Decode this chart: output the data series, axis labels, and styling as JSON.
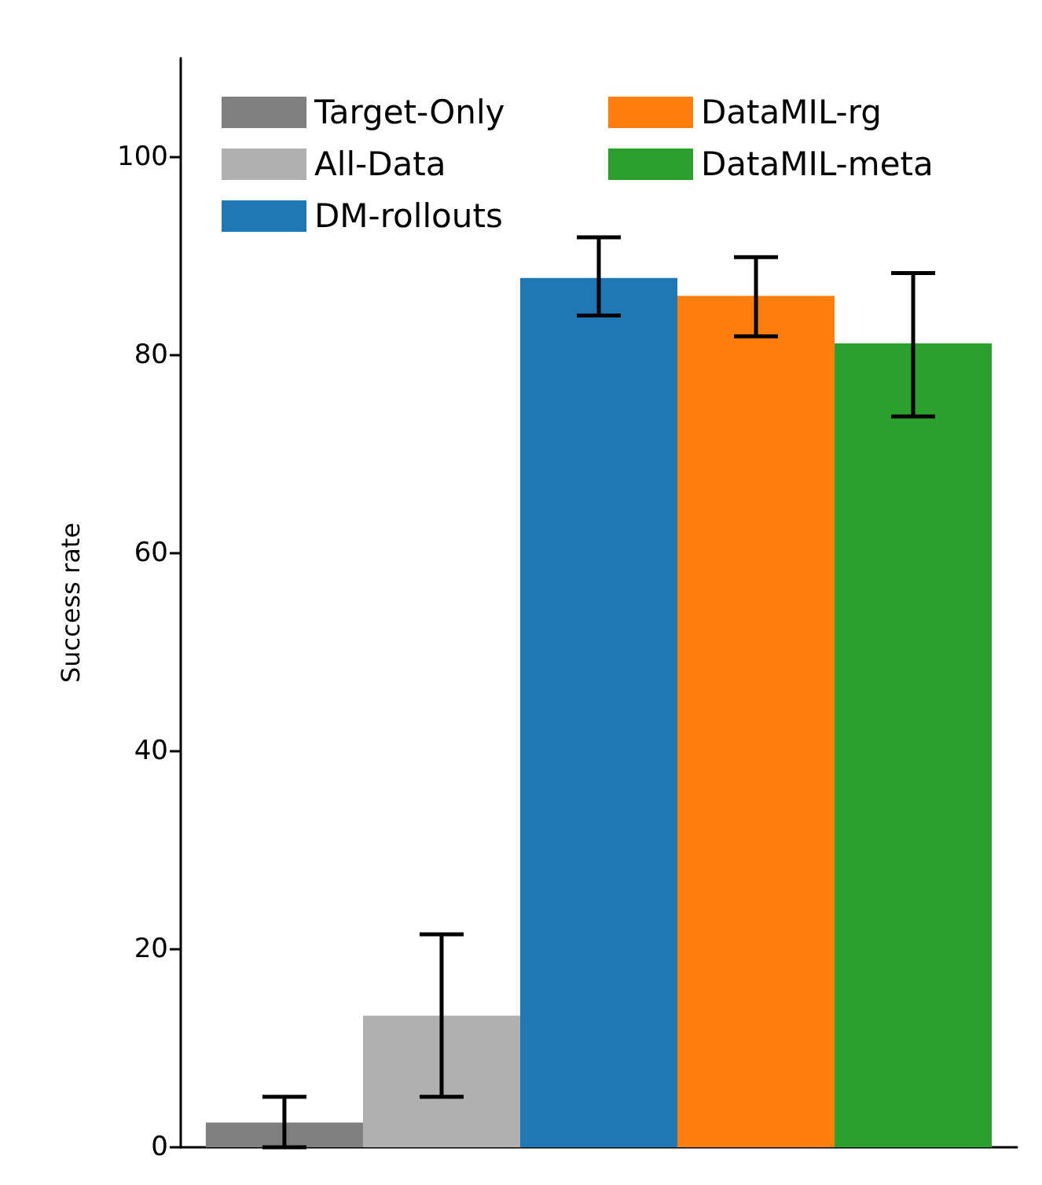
{
  "chart_data": {
    "type": "bar",
    "ylabel": "Success rate",
    "categories": [
      null
    ],
    "series": [
      {
        "name": "Target-Only",
        "color": "#808080",
        "values": [
          2.5
        ],
        "errors": [
          [
            0,
            5.1
          ]
        ]
      },
      {
        "name": "All-Data",
        "color": "#b0b0b0",
        "values": [
          13.3
        ],
        "errors": [
          [
            5.1,
            21.5
          ]
        ]
      },
      {
        "name": "DM-rollouts",
        "color": "#1f77b4",
        "values": [
          87.8
        ],
        "errors": [
          [
            84.0,
            91.9
          ]
        ]
      },
      {
        "name": "DataMIL-rg",
        "color": "#ff7f0e",
        "values": [
          86.0
        ],
        "errors": [
          [
            81.9,
            89.9
          ]
        ]
      },
      {
        "name": "DataMIL-meta",
        "color": "#2ca02c",
        "values": [
          81.2
        ],
        "errors": [
          [
            73.8,
            88.3
          ]
        ]
      }
    ],
    "ylim": [
      0,
      110
    ],
    "yticks": [
      0,
      20,
      40,
      60,
      80,
      100
    ],
    "grid": false,
    "legend": "top left",
    "tick_labels": "y"
  }
}
